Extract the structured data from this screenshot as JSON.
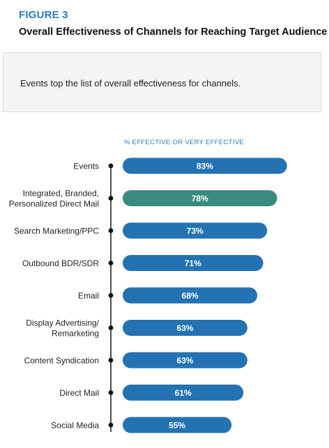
{
  "figure": {
    "label": "FIGURE 3",
    "title": "Overall Effectiveness of Channels for Reaching Target Audience"
  },
  "callout": {
    "text": "Events top the list of overall effectiveness for channels."
  },
  "colors": {
    "bar": "#2472b2",
    "highlight": "#3b8a80",
    "axis_label": "#2b78b8",
    "text": "#222222"
  },
  "chart_data": {
    "type": "bar",
    "orientation": "horizontal",
    "column_header": "% EFFECTIVE OR VERY EFFECTIVE",
    "categories": [
      "Events",
      "Integrated, Branded,\nPersonalized Direct Mail",
      "Search Marketing/PPC",
      "Outbound BDR/SDR",
      "Email",
      "Display Advertising/\nRemarketing",
      "Content Syndication",
      "Direct Mail",
      "Social Media"
    ],
    "values": [
      83,
      78,
      73,
      71,
      68,
      63,
      63,
      61,
      55
    ],
    "value_labels": [
      "83%",
      "78%",
      "73%",
      "71%",
      "68%",
      "63%",
      "63%",
      "61%",
      "55%"
    ],
    "highlight_index": 1,
    "xlim": [
      0,
      100
    ],
    "grid": false,
    "legend": "none"
  }
}
